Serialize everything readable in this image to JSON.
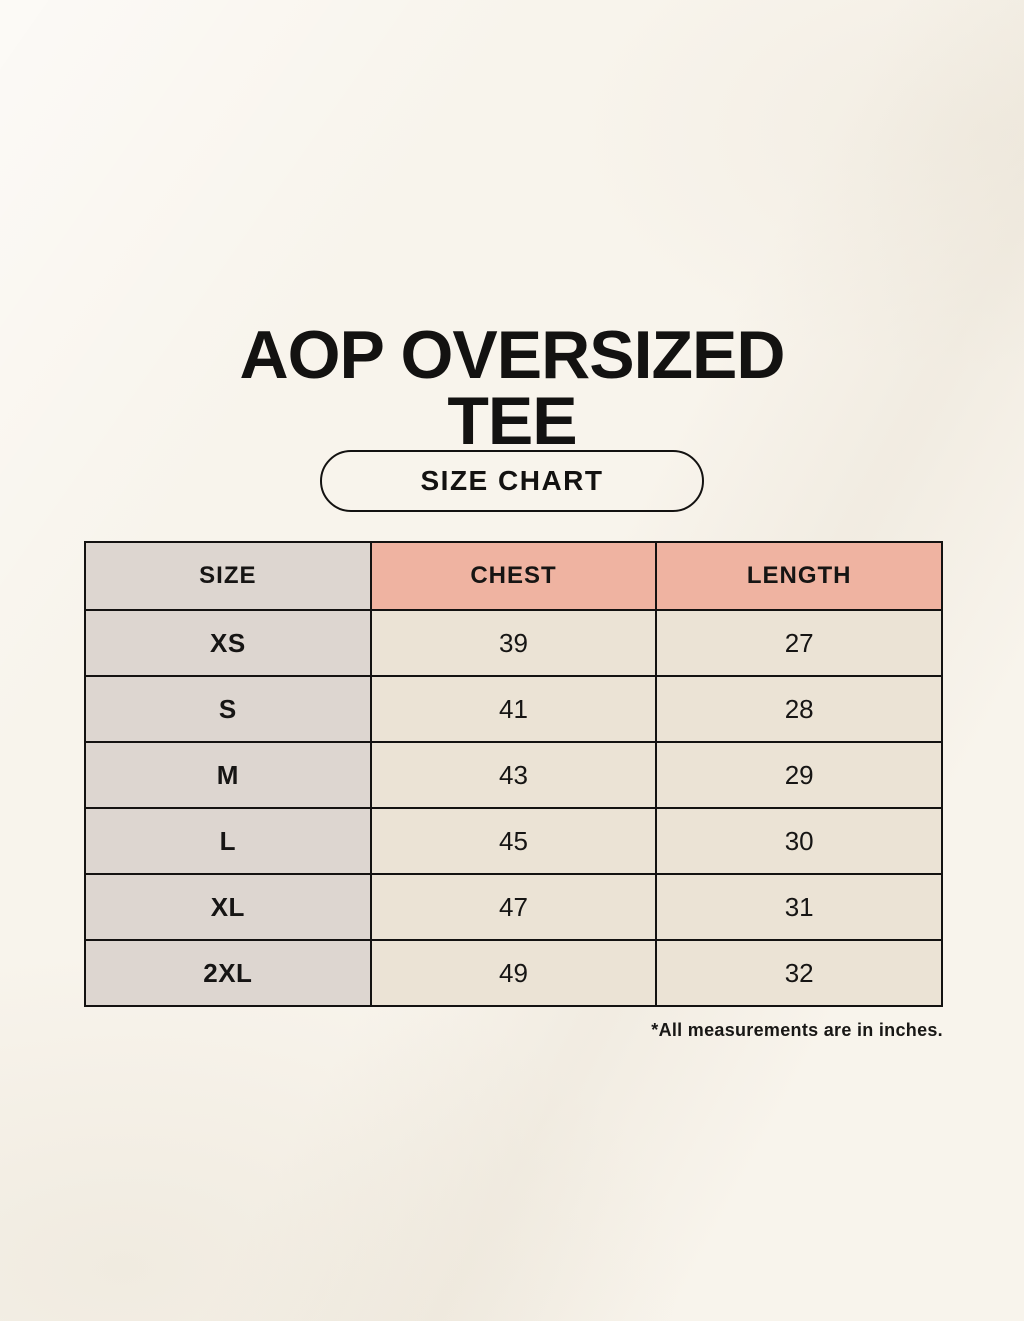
{
  "header": {
    "title_lines": [
      "AOP OVERSIZED",
      "TEE"
    ],
    "badge_label": "SIZE CHART"
  },
  "chart_data": {
    "type": "table",
    "title": "AOP OVERSIZED TEE",
    "columns": [
      "SIZE",
      "CHEST",
      "LENGTH"
    ],
    "rows": [
      [
        "XS",
        39,
        27
      ],
      [
        "S",
        41,
        28
      ],
      [
        "M",
        43,
        29
      ],
      [
        "L",
        45,
        30
      ],
      [
        "XL",
        47,
        31
      ],
      [
        "2XL",
        49,
        32
      ]
    ],
    "units": "inches"
  },
  "footnote": "*All measurements are in inches.",
  "colors": {
    "background": "#f8f4ec",
    "accent_salmon": "#efb3a1",
    "column_gray": "#ddd6d0",
    "cell_cream": "#ebe3d5",
    "border": "#131211",
    "text": "#131211"
  }
}
